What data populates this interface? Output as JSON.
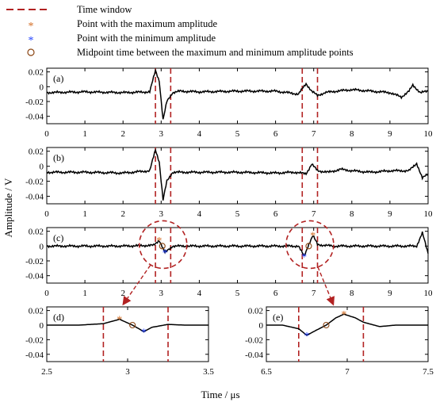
{
  "legend": [
    {
      "label": "Time window",
      "marker": "dashed-line",
      "color": "#b22222"
    },
    {
      "label": "Point with the maximum amplitude",
      "marker": "asterisk",
      "color": "#d2691e"
    },
    {
      "label": "Point with the minimum amplitude",
      "marker": "asterisk",
      "color": "#1f3fff"
    },
    {
      "label": "Midpoint time between the maximum and minimum amplitude points",
      "marker": "circle",
      "color": "#8b4513"
    }
  ],
  "ylabel": "Amplitude / V",
  "xlabel": "Time / μs",
  "colors": {
    "signal": "#000000",
    "window": "#b22222",
    "max": "#d2691e",
    "min": "#1f3fff",
    "mid": "#8b4513",
    "circle": "#b22222"
  },
  "chart_data": [
    {
      "type": "line",
      "label": "(a)",
      "xlim": [
        0,
        10
      ],
      "ylim": [
        -0.05,
        0.025
      ],
      "xticks": [
        0,
        1,
        2,
        3,
        4,
        5,
        6,
        7,
        8,
        9,
        10
      ],
      "yticks": [
        0.02,
        0,
        -0.02,
        -0.04
      ],
      "ytick_labels": [
        "0.02",
        "0",
        "-0.02",
        "-0.04"
      ],
      "windows": [
        2.85,
        3.25,
        6.7,
        7.1
      ],
      "series": [
        {
          "x": [
            0,
            1,
            2,
            2.7,
            2.85,
            2.95,
            3.05,
            3.15,
            3.3,
            3.5,
            4,
            5,
            6,
            6.6,
            6.8,
            6.95,
            7.1,
            7.3,
            7.6,
            8,
            8.5,
            9,
            9.3,
            9.5,
            9.6,
            9.8,
            10
          ],
          "y": [
            -0.008,
            -0.007,
            -0.008,
            -0.007,
            0.022,
            0.008,
            -0.045,
            -0.02,
            -0.008,
            -0.006,
            -0.007,
            -0.006,
            -0.006,
            -0.01,
            0.004,
            -0.006,
            -0.012,
            -0.008,
            -0.006,
            -0.004,
            -0.006,
            -0.008,
            -0.014,
            -0.006,
            0.002,
            -0.008,
            -0.006
          ]
        }
      ]
    },
    {
      "type": "line",
      "label": "(b)",
      "xlim": [
        0,
        10
      ],
      "ylim": [
        -0.05,
        0.025
      ],
      "xticks": [
        0,
        1,
        2,
        3,
        4,
        5,
        6,
        7,
        8,
        9,
        10
      ],
      "yticks": [
        0.02,
        0,
        -0.02,
        -0.04
      ],
      "ytick_labels": [
        "0.02",
        "0",
        "-0.02",
        "-0.04"
      ],
      "windows": [
        2.85,
        3.25,
        6.7,
        7.1
      ],
      "series": [
        {
          "x": [
            0,
            1,
            2,
            2.7,
            2.85,
            2.95,
            3.05,
            3.15,
            3.3,
            3.5,
            4,
            5,
            6,
            6.5,
            6.8,
            6.95,
            7.1,
            7.4,
            7.7,
            8,
            8.5,
            9,
            9.5,
            9.7,
            9.85,
            10
          ],
          "y": [
            -0.008,
            -0.008,
            -0.009,
            -0.006,
            0.022,
            0.006,
            -0.045,
            -0.02,
            -0.008,
            -0.008,
            -0.008,
            -0.008,
            -0.009,
            -0.008,
            -0.01,
            0.003,
            -0.006,
            -0.008,
            -0.004,
            -0.006,
            -0.008,
            -0.006,
            -0.006,
            0.004,
            -0.016,
            -0.01
          ]
        }
      ]
    },
    {
      "type": "line",
      "label": "(c)",
      "xlim": [
        0,
        10
      ],
      "ylim": [
        -0.05,
        0.025
      ],
      "xticks": [
        0,
        1,
        2,
        3,
        4,
        5,
        6,
        7,
        8,
        9,
        10
      ],
      "yticks": [
        0.02,
        0,
        -0.02,
        -0.04
      ],
      "ytick_labels": [
        "0.02",
        "0",
        "-0.02",
        "-0.04"
      ],
      "windows": [
        2.85,
        3.25,
        6.7,
        7.1
      ],
      "max_points": [
        [
          2.95,
          0.008
        ],
        [
          6.98,
          0.015
        ]
      ],
      "min_points": [
        [
          3.1,
          -0.009
        ],
        [
          6.75,
          -0.014
        ]
      ],
      "mid_points": [
        [
          3.03,
          0.0
        ],
        [
          6.87,
          0.0
        ]
      ],
      "series": [
        {
          "x": [
            0,
            1,
            2,
            2.8,
            2.95,
            3.1,
            3.3,
            4,
            5,
            6,
            6.6,
            6.75,
            6.85,
            6.98,
            7.1,
            7.5,
            8,
            8.5,
            9,
            9.5,
            9.7,
            9.85,
            10
          ],
          "y": [
            0.0,
            0.0,
            0.0,
            0.001,
            0.008,
            -0.009,
            0.0,
            0.0,
            0.0,
            0.0,
            0.0,
            -0.014,
            0.0,
            0.015,
            0.002,
            0.0,
            0.0,
            0.0,
            0.0,
            0.0,
            0.0,
            0.018,
            -0.01
          ]
        }
      ]
    },
    {
      "type": "line",
      "label": "(d)",
      "xlim": [
        2.5,
        3.5
      ],
      "ylim": [
        -0.05,
        0.025
      ],
      "xticks": [
        2.5,
        3,
        3.5
      ],
      "xtick_labels": [
        "2.5",
        "3",
        "3.5"
      ],
      "yticks": [
        0.02,
        0,
        -0.02,
        -0.04
      ],
      "ytick_labels": [
        "0.02",
        "0",
        "-0.02",
        "-0.04"
      ],
      "windows": [
        2.85,
        3.25
      ],
      "max_points": [
        [
          2.95,
          0.008
        ]
      ],
      "min_points": [
        [
          3.1,
          -0.009
        ]
      ],
      "mid_points": [
        [
          3.03,
          0.0
        ]
      ],
      "series": [
        {
          "x": [
            2.5,
            2.7,
            2.85,
            2.9,
            2.95,
            3.0,
            3.03,
            3.07,
            3.1,
            3.15,
            3.25,
            3.35,
            3.5
          ],
          "y": [
            0.0,
            0.0,
            0.002,
            0.005,
            0.008,
            0.003,
            0.0,
            -0.005,
            -0.009,
            -0.003,
            0.001,
            0.0,
            0.0
          ]
        }
      ]
    },
    {
      "type": "line",
      "label": "(e)",
      "xlim": [
        6.5,
        7.5
      ],
      "ylim": [
        -0.05,
        0.025
      ],
      "xticks": [
        6.5,
        7,
        7.5
      ],
      "xtick_labels": [
        "6.5",
        "7",
        "7.5"
      ],
      "yticks": [
        0.02,
        0,
        -0.02,
        -0.04
      ],
      "ytick_labels": [
        "0.02",
        "0",
        "-0.02",
        "-0.04"
      ],
      "windows": [
        6.7,
        7.1
      ],
      "max_points": [
        [
          6.98,
          0.015
        ]
      ],
      "min_points": [
        [
          6.75,
          -0.014
        ]
      ],
      "mid_points": [
        [
          6.87,
          0.0
        ]
      ],
      "series": [
        {
          "x": [
            6.5,
            6.6,
            6.7,
            6.75,
            6.8,
            6.87,
            6.93,
            6.98,
            7.05,
            7.1,
            7.2,
            7.3,
            7.5
          ],
          "y": [
            0.0,
            0.0,
            -0.005,
            -0.014,
            -0.008,
            0.0,
            0.01,
            0.015,
            0.01,
            0.004,
            -0.002,
            0.0,
            0.0
          ]
        }
      ]
    }
  ]
}
